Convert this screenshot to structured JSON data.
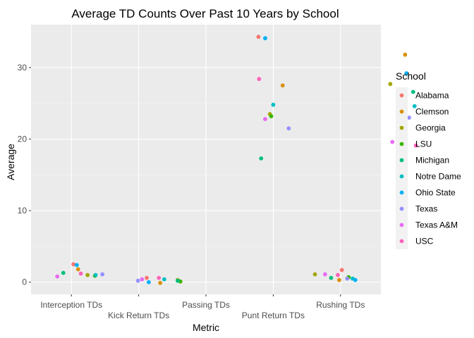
{
  "chart_data": {
    "type": "scatter",
    "title": "Average TD Counts Over Past 10 Years by School",
    "xlabel": "Metric",
    "ylabel": "Average",
    "categories": [
      "Interception TDs",
      "Kick Return TDs",
      "Passing TDs",
      "Punt Return TDs",
      "Rushing TDs"
    ],
    "ylim": [
      -1.7,
      36.0
    ],
    "yticks": [
      0,
      10,
      20,
      30
    ],
    "grid": true,
    "legend": {
      "title": "School",
      "position": "right"
    },
    "series": [
      {
        "name": "Alabama",
        "color": "#F8766D",
        "points": [
          {
            "x": 0.03,
            "y": 2.5
          },
          {
            "x": 1.12,
            "y": 0.6
          },
          {
            "x": 2.78,
            "y": 34.3
          },
          {
            "x": 4.02,
            "y": 1.7
          }
        ]
      },
      {
        "name": "Clemson",
        "color": "#D89000",
        "points": [
          {
            "x": 0.1,
            "y": 1.8
          },
          {
            "x": 1.32,
            "y": -0.1
          },
          {
            "x": 3.14,
            "y": 27.5
          },
          {
            "x": 3.98,
            "y": 0.3
          },
          {
            "x": 4.96,
            "y": 31.8
          }
        ]
      },
      {
        "name": "Georgia",
        "color": "#A3A500",
        "points": [
          {
            "x": 0.24,
            "y": 1.0
          },
          {
            "x": 1.58,
            "y": 0.3
          },
          {
            "x": 2.95,
            "y": 23.5
          },
          {
            "x": 3.62,
            "y": 1.1
          },
          {
            "x": 4.74,
            "y": 27.7
          }
        ]
      },
      {
        "name": "LSU",
        "color": "#39B600",
        "points": [
          {
            "x": 0.35,
            "y": 0.9
          },
          {
            "x": 1.62,
            "y": 0.1
          },
          {
            "x": 2.97,
            "y": 23.2
          },
          {
            "x": 4.12,
            "y": 0.7
          },
          {
            "x": 4.93,
            "y": 24.6
          }
        ]
      },
      {
        "name": "Michigan",
        "color": "#00BF7D",
        "points": [
          {
            "x": -0.12,
            "y": 1.3
          },
          {
            "x": 1.58,
            "y": 0.2
          },
          {
            "x": 2.82,
            "y": 17.3
          },
          {
            "x": 3.86,
            "y": 0.6
          },
          {
            "x": 5.08,
            "y": 26.6
          }
        ]
      },
      {
        "name": "Notre Dame",
        "color": "#00BFC4",
        "points": [
          {
            "x": 0.36,
            "y": 1.0
          },
          {
            "x": 1.38,
            "y": 0.4
          },
          {
            "x": 3.0,
            "y": 24.8
          },
          {
            "x": 4.18,
            "y": 0.5
          },
          {
            "x": 5.1,
            "y": 24.6
          }
        ]
      },
      {
        "name": "Ohio State",
        "color": "#00B0F6",
        "points": [
          {
            "x": 0.08,
            "y": 2.4
          },
          {
            "x": 1.15,
            "y": 0.0
          },
          {
            "x": 2.88,
            "y": 34.1
          },
          {
            "x": 4.22,
            "y": 0.3
          },
          {
            "x": 4.98,
            "y": 29.2
          }
        ]
      },
      {
        "name": "Texas",
        "color": "#9590FF",
        "points": [
          {
            "x": 0.46,
            "y": 1.1
          },
          {
            "x": 0.99,
            "y": 0.2
          },
          {
            "x": 3.23,
            "y": 21.5
          },
          {
            "x": 4.1,
            "y": 0.5
          },
          {
            "x": 5.02,
            "y": 23.0
          }
        ]
      },
      {
        "name": "Texas A&M",
        "color": "#E76BF3",
        "points": [
          {
            "x": -0.21,
            "y": 0.8
          },
          {
            "x": 1.05,
            "y": 0.4
          },
          {
            "x": 2.88,
            "y": 22.8
          },
          {
            "x": 3.77,
            "y": 1.1
          },
          {
            "x": 4.77,
            "y": 19.6
          }
        ]
      },
      {
        "name": "USC",
        "color": "#FF62BC",
        "points": [
          {
            "x": 0.14,
            "y": 1.2
          },
          {
            "x": 1.3,
            "y": 0.6
          },
          {
            "x": 2.79,
            "y": 28.4
          },
          {
            "x": 3.96,
            "y": 1.0
          },
          {
            "x": 5.12,
            "y": 19.1
          }
        ]
      }
    ]
  }
}
